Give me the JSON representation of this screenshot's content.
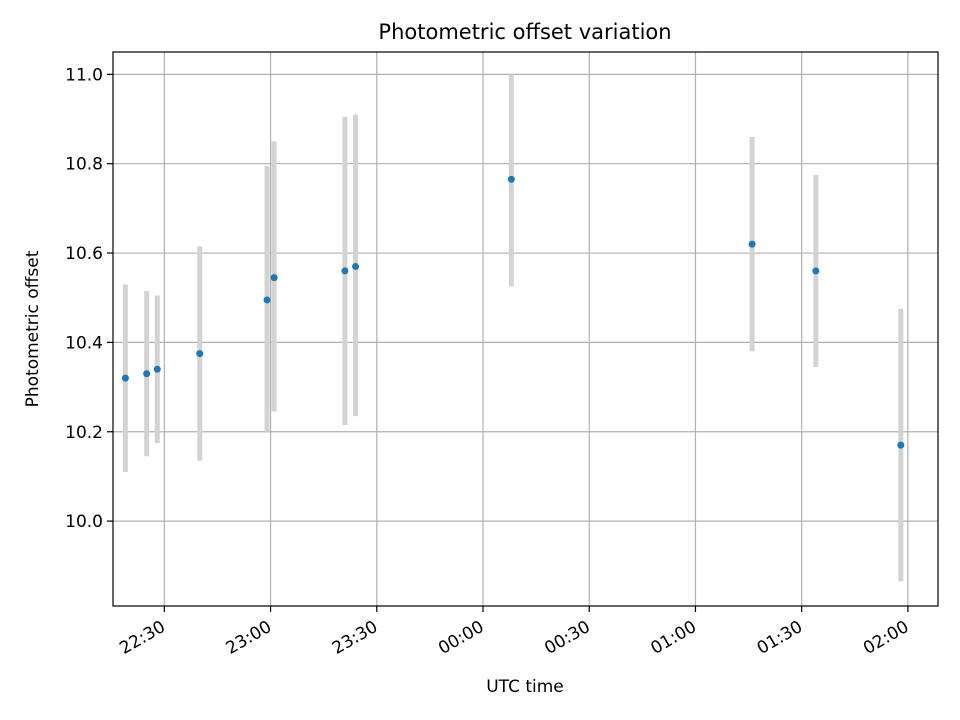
{
  "chart_data": {
    "type": "scatter",
    "title": "Photometric offset variation",
    "xlabel": "UTC time",
    "ylabel": "Photometric offset",
    "grid": true,
    "x_is_time": true,
    "xlim": [
      "22:19",
      "02:10"
    ],
    "ylim": [
      9.81,
      11.05
    ],
    "x_ticks": [
      "22:30",
      "23:00",
      "23:30",
      "00:00",
      "00:30",
      "01:00",
      "01:30",
      "02:00"
    ],
    "y_ticks": [
      "10.0",
      "10.2",
      "10.4",
      "10.6",
      "10.8",
      "11.0"
    ],
    "points": [
      {
        "x": "22:19",
        "y": 10.32,
        "err_low": 10.11,
        "err_high": 10.53
      },
      {
        "x": "22:25",
        "y": 10.33,
        "err_low": 10.145,
        "err_high": 10.515
      },
      {
        "x": "22:28",
        "y": 10.34,
        "err_low": 10.175,
        "err_high": 10.505
      },
      {
        "x": "22:40",
        "y": 10.375,
        "err_low": 10.135,
        "err_high": 10.615
      },
      {
        "x": "22:59",
        "y": 10.495,
        "err_low": 10.2,
        "err_high": 10.795
      },
      {
        "x": "23:01",
        "y": 10.545,
        "err_low": 10.245,
        "err_high": 10.85
      },
      {
        "x": "23:21",
        "y": 10.56,
        "err_low": 10.215,
        "err_high": 10.905
      },
      {
        "x": "23:24",
        "y": 10.57,
        "err_low": 10.235,
        "err_high": 10.91
      },
      {
        "x": "00:08",
        "y": 10.765,
        "err_low": 10.525,
        "err_high": 11.0
      },
      {
        "x": "01:16",
        "y": 10.62,
        "err_low": 10.38,
        "err_high": 10.86
      },
      {
        "x": "01:34",
        "y": 10.56,
        "err_low": 10.345,
        "err_high": 10.775
      },
      {
        "x": "01:58",
        "y": 10.17,
        "err_low": 9.865,
        "err_high": 10.475
      }
    ],
    "colors": {
      "point": "#1f77b4",
      "errorbar": "#d3d3d3",
      "grid": "#b0b0b0",
      "axes": "#000000"
    }
  }
}
